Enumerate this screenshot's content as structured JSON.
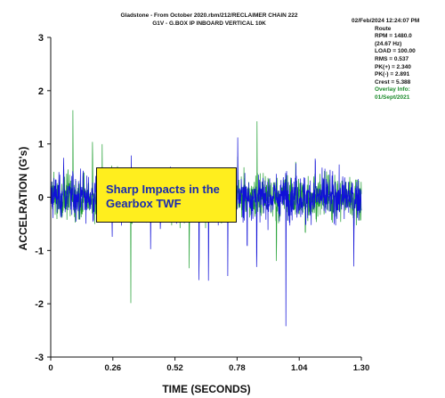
{
  "header": {
    "line1": "Gladstone - From October 2020.rbm/212/RECLAIMER CHAIN 222",
    "line2": "G1V - G.BOX IP INBOARD VERTICAL 10K"
  },
  "info_panel": {
    "timestamp": "02/Feb/2024 12:24:07 PM",
    "route": "Route",
    "rpm": "RPM = 1480.0",
    "hz": "(24.67 Hz)",
    "load": "LOAD = 100.00",
    "rms": "RMS = 0.537",
    "pk_pos": "PK(+) = 2.340",
    "pk_neg": "PK(-) = 2.891",
    "crest": "Crest = 5.388",
    "overlay_label": "Overlay Info:",
    "overlay_date": "01/Sept/2021"
  },
  "callout": {
    "text_line1": "Sharp Impacts in the",
    "text_line2": "Gearbox TWF"
  },
  "colors": {
    "primary_trace": "#1010d8",
    "overlay_trace": "#22a033",
    "callout_fill": "#ffee1e",
    "callout_text": "#1a2bb0"
  },
  "chart_data": {
    "type": "line",
    "title": "Gladstone - From October 2020.rbm/212/RECLAIMER CHAIN 222",
    "subtitle": "G1V - G.BOX IP INBOARD VERTICAL 10K",
    "xlabel": "TIME (SECONDS)",
    "ylabel": "ACCELRATION (G's)",
    "xlim": [
      0,
      1.3
    ],
    "ylim": [
      -3,
      3
    ],
    "x_ticks": [
      0,
      0.26,
      0.52,
      0.78,
      1.04,
      1.3
    ],
    "x_tick_labels": [
      "0",
      "0.26",
      "0.52",
      "0.78",
      "1.04",
      "1.30"
    ],
    "y_ticks": [
      3,
      2,
      1,
      0,
      -1,
      -2,
      -3
    ],
    "y_tick_labels": [
      "3",
      "2",
      "1",
      "0",
      "-1",
      "-2",
      "-3"
    ],
    "impact_interval_s": 0.0405,
    "series": [
      {
        "name": "",
        "color": "#1010d8",
        "rms": 0.537,
        "peak_pos": 2.34,
        "peak_neg": -2.891,
        "impulse_amplitude_range": [
          1.6,
          2.34
        ]
      },
      {
        "name": "",
        "color": "#22a033",
        "impulse_amplitude_range": [
          0.9,
          1.9
        ]
      }
    ],
    "grid": false,
    "legend": "none"
  }
}
